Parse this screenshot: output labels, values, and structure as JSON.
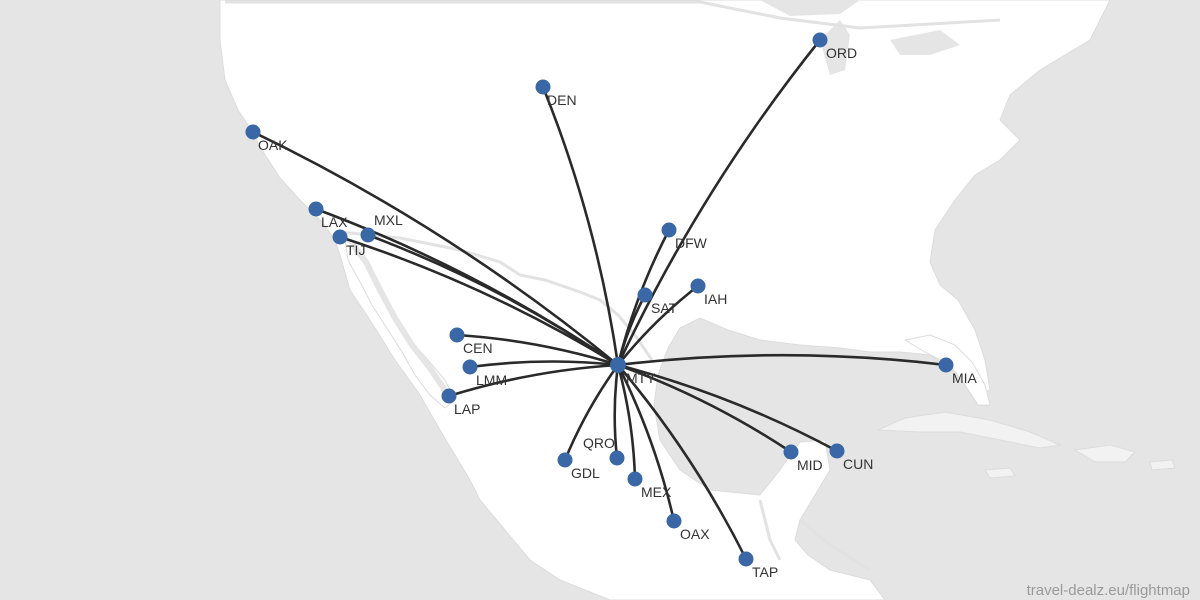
{
  "hub": "MTY",
  "airports": [
    {
      "code": "ORD"
    },
    {
      "code": "DEN"
    },
    {
      "code": "OAK"
    },
    {
      "code": "LAX"
    },
    {
      "code": "MXL"
    },
    {
      "code": "TIJ"
    },
    {
      "code": "DFW"
    },
    {
      "code": "IAH"
    },
    {
      "code": "SAT"
    },
    {
      "code": "CEN"
    },
    {
      "code": "LMM"
    },
    {
      "code": "LAP"
    },
    {
      "code": "MIA"
    },
    {
      "code": "MTY"
    },
    {
      "code": "QRO"
    },
    {
      "code": "GDL"
    },
    {
      "code": "MEX"
    },
    {
      "code": "OAX"
    },
    {
      "code": "TAP"
    },
    {
      "code": "MID"
    },
    {
      "code": "CUN"
    }
  ],
  "watermark": "travel-dealz.eu/flightmap",
  "colors": {
    "ocean": "#e5e5e5",
    "land": "#ffffff",
    "route": "#2a2a2a",
    "airport": "#3a67a5",
    "label": "#333333"
  }
}
